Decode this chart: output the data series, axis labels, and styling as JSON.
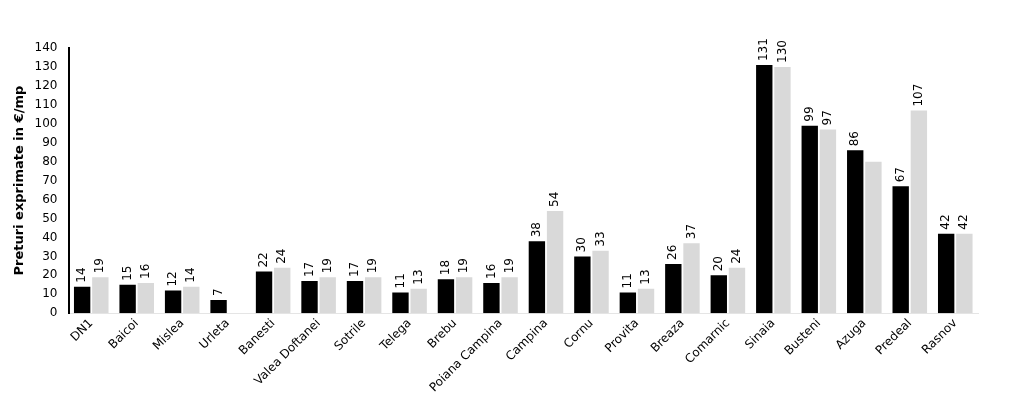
{
  "chart_data": {
    "type": "bar",
    "ylabel": "Preturi exprimate in €/mp",
    "categories": [
      "DN1",
      "Baicoi",
      "Mislea",
      "Urleta",
      "Banesti",
      "Valea Doftanei",
      "Sotrile",
      "Telega",
      "Brebu",
      "Poiana Campina",
      "Campina",
      "Cornu",
      "Provita",
      "Breaza",
      "Comarnic",
      "Sinaia",
      "Busteni",
      "Azuga",
      "Predeal",
      "Rasnov"
    ],
    "series": [
      {
        "color": "#000000",
        "values": [
          14,
          15,
          12,
          7,
          22,
          17,
          17,
          11,
          18,
          16,
          38,
          30,
          11,
          26,
          20,
          131,
          99,
          86,
          67,
          42
        ],
        "value_labels": [
          "14",
          "15",
          "12",
          "7",
          "22",
          "17",
          "17",
          "11",
          "18",
          "16",
          "38",
          "30",
          "11",
          "26",
          "20",
          "131",
          "99",
          "86",
          "67",
          "42"
        ]
      },
      {
        "color": "#d9d9d9",
        "values": [
          19,
          16,
          14,
          null,
          24,
          19,
          19,
          13,
          19,
          19,
          54,
          33,
          13,
          37,
          24,
          130,
          97,
          80,
          107,
          42
        ],
        "value_labels": [
          "19",
          "16",
          "14",
          null,
          "24",
          "19",
          "19",
          "13",
          "19",
          "19",
          "54",
          "33",
          "13",
          "37",
          "24",
          "130",
          "97",
          null,
          "107",
          "42"
        ]
      }
    ],
    "ylim": [
      0,
      140
    ],
    "yticks": [
      0,
      10,
      20,
      30,
      40,
      50,
      60,
      70,
      80,
      90,
      100,
      110,
      120,
      130,
      140
    ],
    "grid": false,
    "legend": false
  }
}
